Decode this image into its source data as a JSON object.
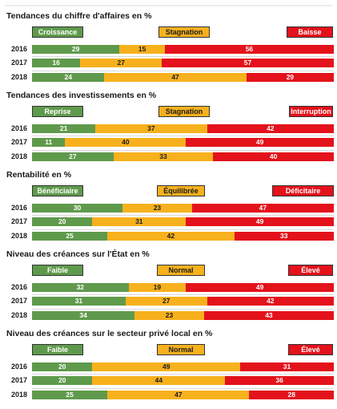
{
  "colors": {
    "green": "#5f9a4c",
    "orange": "#f7b11d",
    "red": "#e3121b"
  },
  "chart_data": [
    {
      "type": "bar",
      "stacked": true,
      "orientation": "horizontal",
      "title": "Tendances du chiffre d'affaires en %",
      "categories": [
        "2016",
        "2017",
        "2018"
      ],
      "series": [
        {
          "name": "Croissance",
          "values": [
            29,
            16,
            24
          ]
        },
        {
          "name": "Stagnation",
          "values": [
            15,
            27,
            47
          ]
        },
        {
          "name": "Baisse",
          "values": [
            56,
            57,
            29
          ]
        }
      ]
    },
    {
      "type": "bar",
      "stacked": true,
      "orientation": "horizontal",
      "title": "Tendances des investissements en %",
      "categories": [
        "2016",
        "2017",
        "2018"
      ],
      "series": [
        {
          "name": "Reprise",
          "values": [
            21,
            11,
            27
          ]
        },
        {
          "name": "Stagnation",
          "values": [
            37,
            40,
            33
          ]
        },
        {
          "name": "Interruption",
          "values": [
            42,
            49,
            40
          ]
        }
      ]
    },
    {
      "type": "bar",
      "stacked": true,
      "orientation": "horizontal",
      "title": "Rentabilité en %",
      "categories": [
        "2016",
        "2017",
        "2018"
      ],
      "series": [
        {
          "name": "Bénéficiaire",
          "values": [
            30,
            20,
            25
          ]
        },
        {
          "name": "Équilibrée",
          "values": [
            23,
            31,
            42
          ]
        },
        {
          "name": "Déficitaire",
          "values": [
            47,
            49,
            33
          ]
        }
      ]
    },
    {
      "type": "bar",
      "stacked": true,
      "orientation": "horizontal",
      "title": "Niveau des créances sur l'État en %",
      "categories": [
        "2016",
        "2017",
        "2018"
      ],
      "series": [
        {
          "name": "Faible",
          "values": [
            32,
            31,
            34
          ]
        },
        {
          "name": "Normal",
          "values": [
            19,
            27,
            23
          ]
        },
        {
          "name": "Élevé",
          "values": [
            49,
            42,
            43
          ]
        }
      ]
    },
    {
      "type": "bar",
      "stacked": true,
      "orientation": "horizontal",
      "title": "Niveau des créances sur le secteur privé local en %",
      "categories": [
        "2016",
        "2017",
        "2018"
      ],
      "series": [
        {
          "name": "Faible",
          "values": [
            20,
            20,
            25
          ]
        },
        {
          "name": "Normal",
          "values": [
            49,
            44,
            47
          ]
        },
        {
          "name": "Élevé",
          "values": [
            31,
            36,
            28
          ]
        }
      ]
    }
  ]
}
